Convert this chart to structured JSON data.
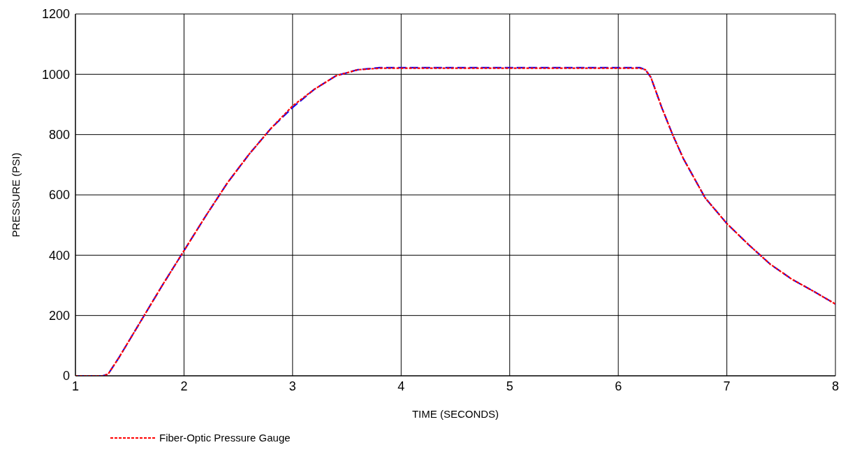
{
  "chart_data": {
    "type": "line",
    "xlabel": "TIME (SECONDS)",
    "ylabel": "PRESSURE (PSI)",
    "xlim": [
      1,
      8
    ],
    "xticks": [
      1,
      2,
      3,
      4,
      5,
      6,
      7,
      8
    ],
    "ylim": [
      0,
      1200
    ],
    "yticks": [
      0,
      200,
      400,
      600,
      800,
      1000,
      1200
    ],
    "grid": true,
    "legend": "bottom",
    "marker": "none",
    "x": [
      1,
      1.25,
      1.3,
      1.4,
      1.6,
      1.8,
      2,
      2.2,
      2.4,
      2.6,
      2.8,
      3,
      3.2,
      3.4,
      3.6,
      3.8,
      4,
      5,
      6,
      6.2,
      6.25,
      6.3,
      6.4,
      6.5,
      6.6,
      6.8,
      7,
      7.2,
      7.4,
      7.6,
      7.8,
      8
    ],
    "series": [
      {
        "color": "#0000ff",
        "line_style": "dashed",
        "values": [
          0,
          0,
          5,
          60,
          180,
          300,
          415,
          530,
          640,
          735,
          820,
          890,
          950,
          995,
          1015,
          1022,
          1022,
          1022,
          1022,
          1022,
          1015,
          990,
          890,
          800,
          720,
          590,
          505,
          435,
          370,
          320,
          280,
          238
        ]
      },
      {
        "name": "Fiber-Optic Pressure Gauge",
        "color": "#ff0000",
        "line_style": "dotted",
        "values": [
          0,
          0,
          5,
          60,
          180,
          300,
          415,
          530,
          640,
          735,
          820,
          895,
          950,
          995,
          1015,
          1020,
          1020,
          1020,
          1020,
          1020,
          1015,
          990,
          890,
          800,
          720,
          590,
          505,
          435,
          370,
          320,
          280,
          238
        ]
      }
    ]
  }
}
